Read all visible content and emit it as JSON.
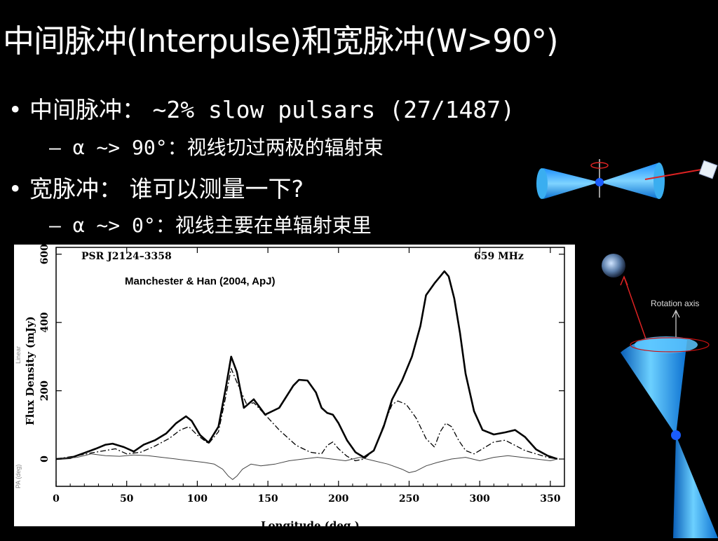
{
  "slide": {
    "title": "中间脉冲(Interpulse)和宽脉冲(W>90°)",
    "bullets": [
      {
        "label": "中间脉冲：",
        "text": "~2% slow pulsars (27/1487)",
        "sub": "– α ~> 90°：视线切过两极的辐射束"
      },
      {
        "label": "宽脉冲：",
        "text": "谁可以测量一下?",
        "sub": "– α ~> 0°：视线主要在单辐射束里"
      }
    ]
  },
  "right_figure": {
    "rotation_axis_label": "Rotation axis",
    "earth_icon": "earth-icon"
  },
  "left_figure": {
    "beam_icon": "double-cone-beam-icon",
    "observer_icon": "observer-icon"
  },
  "chart_data": {
    "type": "line",
    "pulsar": "PSR J2124–3358",
    "frequency": "659 MHz",
    "annotation": "Manchester & Han (2004, ApJ)",
    "xlabel": "Longitude (deg.)",
    "ylabel": "Flux Density (mJy)",
    "xlim": [
      0,
      360
    ],
    "ylim": [
      -80,
      620
    ],
    "xticks": [
      0,
      50,
      100,
      150,
      200,
      250,
      300,
      350
    ],
    "yticks": [
      0,
      200,
      400,
      600
    ],
    "pa_axis_label": "PA (deg)",
    "linear_axis_label": "Linear",
    "series": [
      {
        "style": "solid-thick",
        "x": [
          0,
          10,
          20,
          28,
          35,
          40,
          48,
          55,
          62,
          70,
          78,
          85,
          92,
          96,
          102,
          108,
          115,
          120,
          124,
          128,
          133,
          140,
          148,
          158,
          168,
          172,
          178,
          184,
          188,
          192,
          196,
          200,
          206,
          212,
          218,
          225,
          232,
          238,
          245,
          252,
          258,
          262,
          268,
          272,
          275,
          278,
          282,
          286,
          290,
          296,
          302,
          310,
          318,
          325,
          332,
          340,
          348,
          355
        ],
        "y": [
          0,
          3,
          18,
          30,
          42,
          45,
          35,
          22,
          42,
          55,
          75,
          105,
          125,
          112,
          70,
          48,
          95,
          205,
          300,
          255,
          150,
          175,
          130,
          150,
          215,
          232,
          230,
          195,
          150,
          135,
          130,
          105,
          55,
          20,
          5,
          25,
          95,
          175,
          230,
          300,
          390,
          480,
          515,
          535,
          550,
          535,
          470,
          370,
          250,
          140,
          85,
          72,
          78,
          85,
          65,
          28,
          10,
          0
        ]
      },
      {
        "style": "dash-dot",
        "x": [
          0,
          15,
          25,
          35,
          42,
          50,
          60,
          70,
          80,
          88,
          94,
          100,
          108,
          115,
          120,
          124,
          128,
          135,
          140,
          148,
          158,
          170,
          180,
          188,
          192,
          196,
          200,
          206,
          212,
          218,
          225,
          232,
          238,
          242,
          248,
          255,
          262,
          268,
          272,
          276,
          280,
          285,
          290,
          296,
          302,
          310,
          318,
          325,
          332,
          340,
          348,
          355
        ],
        "y": [
          0,
          10,
          18,
          25,
          30,
          15,
          20,
          38,
          60,
          85,
          95,
          70,
          45,
          80,
          180,
          265,
          225,
          160,
          165,
          130,
          85,
          40,
          20,
          15,
          40,
          50,
          30,
          8,
          -5,
          0,
          25,
          100,
          160,
          170,
          160,
          120,
          60,
          35,
          80,
          105,
          95,
          55,
          25,
          15,
          30,
          50,
          55,
          40,
          25,
          15,
          5,
          0
        ]
      },
      {
        "style": "solid-thin",
        "x": [
          0,
          15,
          25,
          35,
          45,
          55,
          65,
          75,
          85,
          95,
          105,
          112,
          118,
          122,
          125,
          128,
          132,
          138,
          145,
          155,
          165,
          175,
          185,
          195,
          205,
          215,
          225,
          235,
          245,
          250,
          255,
          262,
          270,
          280,
          290,
          300,
          310,
          320,
          330,
          340,
          350,
          355
        ],
        "y": [
          0,
          5,
          15,
          10,
          8,
          12,
          10,
          5,
          0,
          -5,
          -10,
          -15,
          -30,
          -50,
          -60,
          -50,
          -30,
          -15,
          -20,
          -15,
          -5,
          0,
          5,
          0,
          -5,
          5,
          -5,
          -15,
          -30,
          -40,
          -35,
          -20,
          -10,
          0,
          5,
          -5,
          5,
          10,
          5,
          0,
          -5,
          0
        ]
      }
    ]
  }
}
